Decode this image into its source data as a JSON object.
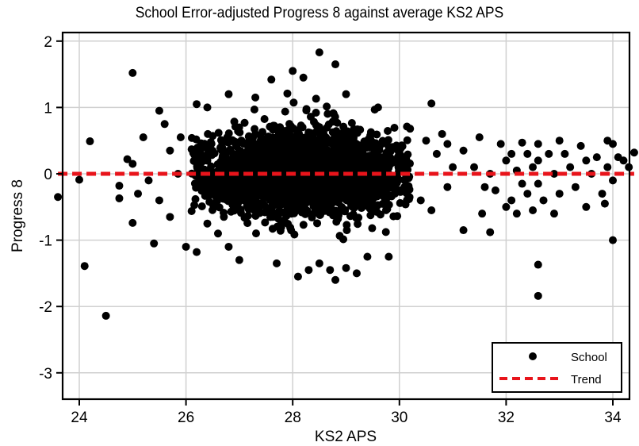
{
  "chart_data": {
    "type": "scatter",
    "title": "School Error-adjusted Progress 8 against average KS2 APS",
    "xlabel": "KS2 APS",
    "ylabel": "Progress 8",
    "xlim": [
      23.3,
      34.6
    ],
    "ylim": [
      -3.35,
      2.15
    ],
    "xticks": [
      24,
      26,
      28,
      30,
      32,
      34
    ],
    "yticks": [
      2,
      1,
      0,
      -1,
      -2,
      -3
    ],
    "grid": true,
    "legend": {
      "position": "lower right",
      "entries": [
        {
          "label": "School",
          "marker": "dot",
          "color": "#000000"
        },
        {
          "label": "Trend",
          "marker": "dashed-line",
          "color": "#e8141b"
        }
      ]
    },
    "series": [
      {
        "name": "School",
        "color": "#000000",
        "dense_cluster": {
          "x_center": 28.2,
          "x_sd": 1.05,
          "y_sd": 0.32,
          "count": 2600,
          "x_range": [
            26.1,
            30.2
          ]
        },
        "outliers": [
          [
            23.6,
            -0.35
          ],
          [
            24.0,
            -0.09
          ],
          [
            24.1,
            -1.39
          ],
          [
            24.2,
            0.49
          ],
          [
            24.5,
            -2.14
          ],
          [
            25.0,
            1.52
          ],
          [
            24.75,
            -0.18
          ],
          [
            24.75,
            -0.37
          ],
          [
            24.9,
            0.22
          ],
          [
            25.0,
            0.15
          ],
          [
            25.2,
            0.55
          ],
          [
            25.4,
            -1.05
          ],
          [
            25.5,
            0.95
          ],
          [
            25.6,
            0.75
          ],
          [
            25.0,
            -0.74
          ],
          [
            25.1,
            -0.3
          ],
          [
            25.3,
            -0.1
          ],
          [
            25.5,
            -0.4
          ],
          [
            25.7,
            -0.65
          ],
          [
            26.0,
            -1.1
          ],
          [
            25.85,
            0.0
          ],
          [
            25.7,
            0.35
          ],
          [
            25.9,
            0.55
          ],
          [
            26.2,
            1.05
          ],
          [
            26.2,
            -1.18
          ],
          [
            26.4,
            -0.75
          ],
          [
            26.6,
            -0.9
          ],
          [
            26.8,
            -1.1
          ],
          [
            27.0,
            -1.3
          ],
          [
            26.4,
            1.0
          ],
          [
            28.5,
            1.83
          ],
          [
            28.8,
            1.65
          ],
          [
            28.0,
            1.55
          ],
          [
            28.2,
            1.45
          ],
          [
            27.6,
            1.42
          ],
          [
            27.3,
            1.15
          ],
          [
            26.8,
            1.2
          ],
          [
            27.9,
            1.21
          ],
          [
            29.0,
            1.2
          ],
          [
            29.6,
            1.0
          ],
          [
            30.2,
            0.68
          ],
          [
            30.6,
            1.06
          ],
          [
            27.7,
            -1.35
          ],
          [
            28.1,
            -1.55
          ],
          [
            28.5,
            -1.35
          ],
          [
            28.8,
            -1.6
          ],
          [
            29.0,
            -1.42
          ],
          [
            29.2,
            -1.5
          ],
          [
            29.4,
            -1.25
          ],
          [
            29.8,
            -1.25
          ],
          [
            28.7,
            -1.45
          ],
          [
            28.3,
            -1.45
          ],
          [
            30.5,
            0.5
          ],
          [
            30.7,
            0.3
          ],
          [
            30.8,
            0.6
          ],
          [
            30.9,
            0.45
          ],
          [
            30.4,
            -0.4
          ],
          [
            30.6,
            -0.55
          ],
          [
            30.9,
            -0.2
          ],
          [
            31.0,
            0.1
          ],
          [
            31.2,
            0.35
          ],
          [
            31.2,
            -0.85
          ],
          [
            31.4,
            0.1
          ],
          [
            31.5,
            0.55
          ],
          [
            31.6,
            -0.2
          ],
          [
            31.7,
            0.0
          ],
          [
            31.8,
            -0.25
          ],
          [
            31.7,
            -0.88
          ],
          [
            31.55,
            -0.6
          ],
          [
            31.9,
            0.45
          ],
          [
            32.0,
            0.2
          ],
          [
            32.0,
            -0.5
          ],
          [
            32.1,
            0.3
          ],
          [
            32.2,
            0.05
          ],
          [
            32.1,
            -0.4
          ],
          [
            32.2,
            -0.6
          ],
          [
            32.3,
            0.47
          ],
          [
            32.4,
            0.3
          ],
          [
            32.3,
            -0.15
          ],
          [
            32.4,
            -0.3
          ],
          [
            32.5,
            0.1
          ],
          [
            32.5,
            -0.55
          ],
          [
            32.6,
            0.45
          ],
          [
            32.6,
            0.2
          ],
          [
            32.6,
            -0.15
          ],
          [
            32.7,
            -0.4
          ],
          [
            32.6,
            -1.37
          ],
          [
            32.6,
            -1.84
          ],
          [
            32.8,
            0.3
          ],
          [
            32.9,
            0.0
          ],
          [
            32.9,
            -0.6
          ],
          [
            33.0,
            0.5
          ],
          [
            33.1,
            0.3
          ],
          [
            33.0,
            -0.3
          ],
          [
            33.2,
            0.1
          ],
          [
            33.3,
            -0.2
          ],
          [
            33.4,
            0.42
          ],
          [
            33.5,
            0.2
          ],
          [
            33.5,
            -0.5
          ],
          [
            33.6,
            0.0
          ],
          [
            33.7,
            0.25
          ],
          [
            33.8,
            -0.3
          ],
          [
            33.9,
            0.5
          ],
          [
            33.9,
            0.1
          ],
          [
            34.0,
            0.45
          ],
          [
            34.1,
            0.25
          ],
          [
            34.0,
            -0.1
          ],
          [
            34.0,
            -1.0
          ],
          [
            34.2,
            0.2
          ],
          [
            34.3,
            0.1
          ],
          [
            34.4,
            0.32
          ],
          [
            33.85,
            -0.45
          ]
        ]
      }
    ],
    "trend": {
      "name": "Trend",
      "color": "#e8141b",
      "x": [
        23.6,
        34.4
      ],
      "y": [
        0.0,
        0.0
      ]
    }
  }
}
